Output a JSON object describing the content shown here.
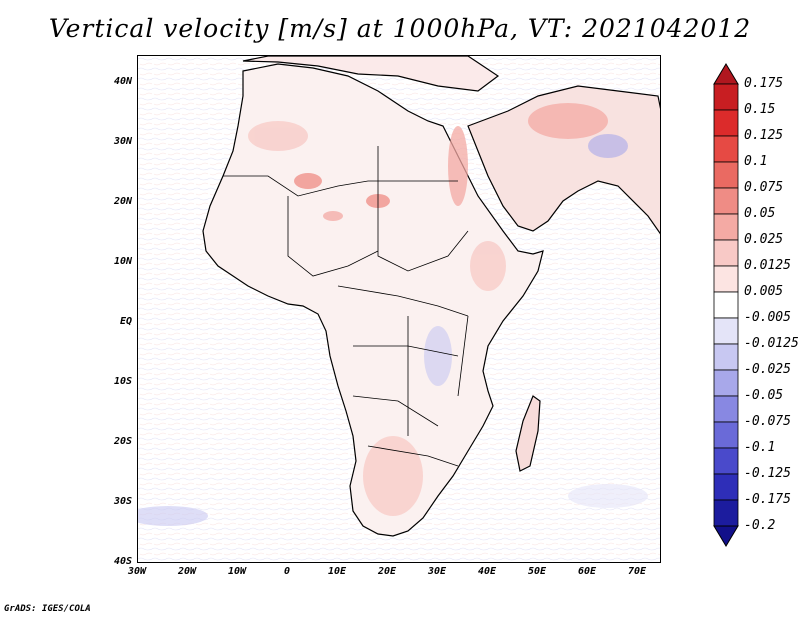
{
  "title": "Vertical velocity [m/s] at 1000hPa, VT: 2021042012",
  "credit": "GrADS: IGES/COLA",
  "map": {
    "lat_labels": [
      "40N",
      "30N",
      "20N",
      "10N",
      "EQ",
      "10S",
      "20S",
      "30S",
      "40S"
    ],
    "lon_labels": [
      "30W",
      "20W",
      "10W",
      "0",
      "10E",
      "20E",
      "30E",
      "40E",
      "50E",
      "60E",
      "70E"
    ],
    "extent": {
      "lon": [
        -30,
        75
      ],
      "lat": [
        -40,
        45
      ]
    }
  },
  "colorbar": {
    "labels": [
      "0.175",
      "0.15",
      "0.125",
      "0.1",
      "0.075",
      "0.05",
      "0.025",
      "0.0125",
      "0.005",
      "-0.005",
      "-0.0125",
      "-0.025",
      "-0.05",
      "-0.075",
      "-0.1",
      "-0.125",
      "-0.175",
      "-0.2"
    ],
    "colors": [
      "#b0171f",
      "#c81e22",
      "#dc2b2b",
      "#e64a44",
      "#ea6a62",
      "#ef8c85",
      "#f4aaa4",
      "#f8c9c6",
      "#fce4e2",
      "#ffffff",
      "#e4e4f8",
      "#c8c8f2",
      "#a8a8ea",
      "#8888e2",
      "#6a6ad8",
      "#4a4acb",
      "#2e2eb8",
      "#1c1c9e",
      "#12108a"
    ]
  }
}
